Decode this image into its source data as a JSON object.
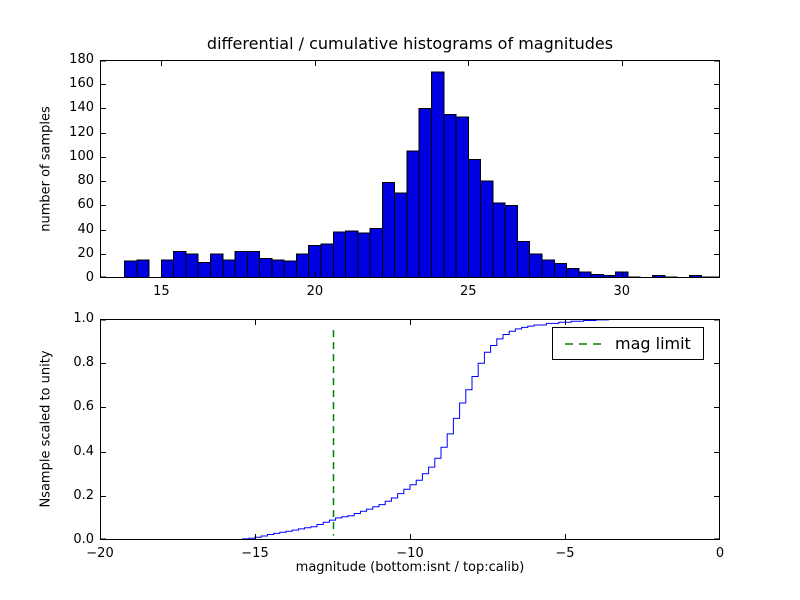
{
  "colors": {
    "background": "#ffffff",
    "bar_fill": "#0000e0",
    "bar_edge": "#000000",
    "line": "#0000ff",
    "mag_limit_line": "#008000",
    "axes": "#000000"
  },
  "chart_data": [
    {
      "type": "bar",
      "role": "differential-histogram",
      "title": "differential / cumulative histograms of magnitudes",
      "ylabel": "number of samples",
      "xlim": [
        13,
        33.2
      ],
      "ylim": [
        0,
        180
      ],
      "grid": false,
      "bin_start": 13.8,
      "bin_width": 0.4,
      "counts": [
        14,
        15,
        0,
        15,
        22,
        20,
        13,
        20,
        15,
        22,
        22,
        16,
        15,
        14,
        20,
        27,
        28,
        38,
        39,
        37,
        41,
        79,
        70,
        105,
        140,
        170,
        135,
        133,
        98,
        80,
        62,
        60,
        30,
        20,
        15,
        12,
        8,
        5,
        3,
        2,
        5,
        1,
        0,
        2,
        1,
        0,
        2,
        1
      ],
      "xticks": {
        "values": [
          15,
          20,
          25,
          30
        ],
        "labels": [
          "15",
          "20",
          "25",
          "30"
        ]
      },
      "yticks": {
        "values": [
          0,
          20,
          40,
          60,
          80,
          100,
          120,
          140,
          160,
          180
        ],
        "labels": [
          "0",
          "20",
          "40",
          "60",
          "80",
          "100",
          "120",
          "140",
          "160",
          "180"
        ]
      }
    },
    {
      "type": "line",
      "step": true,
      "role": "cumulative-histogram",
      "ylabel": "Nsample scaled to unity",
      "xlabel": "magnitude (bottom:isnt / top:calib)",
      "xlim": [
        -20,
        0
      ],
      "ylim": [
        0,
        1
      ],
      "grid": false,
      "points": [
        [
          -15.6,
          0.0
        ],
        [
          -15.4,
          0.005
        ],
        [
          -15.2,
          0.008
        ],
        [
          -15.0,
          0.012
        ],
        [
          -14.8,
          0.018
        ],
        [
          -14.6,
          0.025
        ],
        [
          -14.4,
          0.03
        ],
        [
          -14.2,
          0.035
        ],
        [
          -14.0,
          0.04
        ],
        [
          -13.8,
          0.045
        ],
        [
          -13.6,
          0.05
        ],
        [
          -13.4,
          0.055
        ],
        [
          -13.2,
          0.06
        ],
        [
          -13.0,
          0.07
        ],
        [
          -12.8,
          0.08
        ],
        [
          -12.6,
          0.09
        ],
        [
          -12.4,
          0.1
        ],
        [
          -12.2,
          0.105
        ],
        [
          -12.0,
          0.11
        ],
        [
          -11.8,
          0.12
        ],
        [
          -11.6,
          0.13
        ],
        [
          -11.4,
          0.14
        ],
        [
          -11.2,
          0.15
        ],
        [
          -11.0,
          0.16
        ],
        [
          -10.8,
          0.175
        ],
        [
          -10.6,
          0.19
        ],
        [
          -10.4,
          0.21
        ],
        [
          -10.2,
          0.23
        ],
        [
          -10.0,
          0.25
        ],
        [
          -9.8,
          0.27
        ],
        [
          -9.6,
          0.3
        ],
        [
          -9.4,
          0.33
        ],
        [
          -9.2,
          0.37
        ],
        [
          -9.0,
          0.42
        ],
        [
          -8.8,
          0.48
        ],
        [
          -8.6,
          0.55
        ],
        [
          -8.4,
          0.62
        ],
        [
          -8.2,
          0.68
        ],
        [
          -8.0,
          0.74
        ],
        [
          -7.8,
          0.8
        ],
        [
          -7.6,
          0.85
        ],
        [
          -7.4,
          0.88
        ],
        [
          -7.2,
          0.91
        ],
        [
          -7.0,
          0.93
        ],
        [
          -6.8,
          0.945
        ],
        [
          -6.6,
          0.955
        ],
        [
          -6.4,
          0.962
        ],
        [
          -6.2,
          0.968
        ],
        [
          -6.0,
          0.973
        ],
        [
          -5.6,
          0.98
        ],
        [
          -5.2,
          0.985
        ],
        [
          -4.8,
          0.99
        ],
        [
          -4.4,
          0.993
        ],
        [
          -4.0,
          0.996
        ],
        [
          -3.6,
          0.998
        ],
        [
          -3.0,
          0.999
        ],
        [
          -2.4,
          1.0
        ],
        [
          0.0,
          1.0
        ]
      ],
      "mag_limit": {
        "x": -12.5,
        "label": "mag limit",
        "linestyle": "dashed",
        "y_span": [
          0.02,
          0.95
        ]
      },
      "legend": {
        "position": "upper right",
        "entries": [
          {
            "label": "mag limit",
            "color": "#008000",
            "linestyle": "dashed"
          }
        ]
      },
      "xticks": {
        "values": [
          -20,
          -15,
          -10,
          -5,
          0
        ],
        "labels": [
          "−20",
          "−15",
          "−10",
          "−5",
          "0"
        ]
      },
      "yticks": {
        "values": [
          0,
          0.2,
          0.4,
          0.6,
          0.8,
          1.0
        ],
        "labels": [
          "0.0",
          "0.2",
          "0.4",
          "0.6",
          "0.8",
          "1.0"
        ]
      }
    }
  ]
}
